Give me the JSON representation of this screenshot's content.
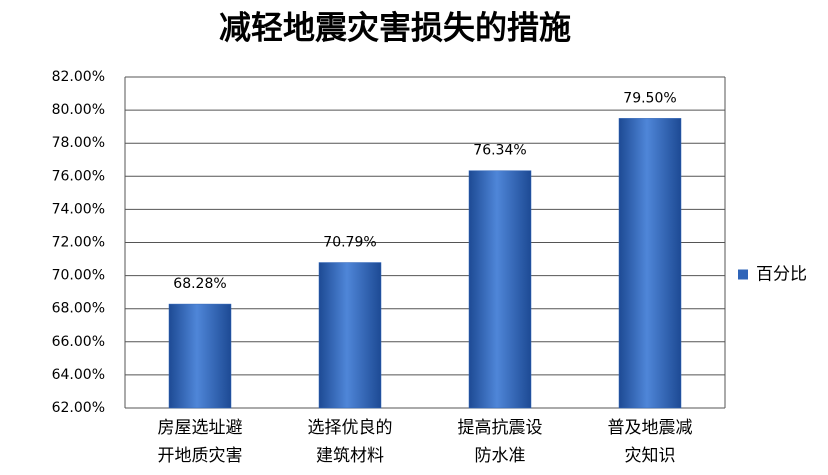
{
  "chart_data": {
    "type": "bar",
    "title": "减轻地震灾害损失的措施",
    "categories": [
      [
        "房屋选址避",
        "开地质灾害"
      ],
      [
        "选择优良的",
        "建筑材料"
      ],
      [
        "提高抗震设",
        "防水准"
      ],
      [
        "普及地震减",
        "灾知识"
      ]
    ],
    "series": [
      {
        "name": "百分比",
        "color": "#2f64b8",
        "values": [
          68.28,
          70.79,
          76.34,
          79.5
        ],
        "value_labels": [
          "68.28%",
          "70.79%",
          "76.34%",
          "79.50%"
        ]
      }
    ],
    "ylim": [
      62,
      82
    ],
    "yticks": [
      {
        "value": 62,
        "label": "62.00%"
      },
      {
        "value": 64,
        "label": "64.00%"
      },
      {
        "value": 66,
        "label": "66.00%"
      },
      {
        "value": 68,
        "label": "68.00%"
      },
      {
        "value": 70,
        "label": "70.00%"
      },
      {
        "value": 72,
        "label": "72.00%"
      },
      {
        "value": 74,
        "label": "74.00%"
      },
      {
        "value": 76,
        "label": "76.00%"
      },
      {
        "value": 78,
        "label": "78.00%"
      },
      {
        "value": 80,
        "label": "80.00%"
      },
      {
        "value": 82,
        "label": "82.00%"
      }
    ],
    "grid": true,
    "legend": "right"
  }
}
